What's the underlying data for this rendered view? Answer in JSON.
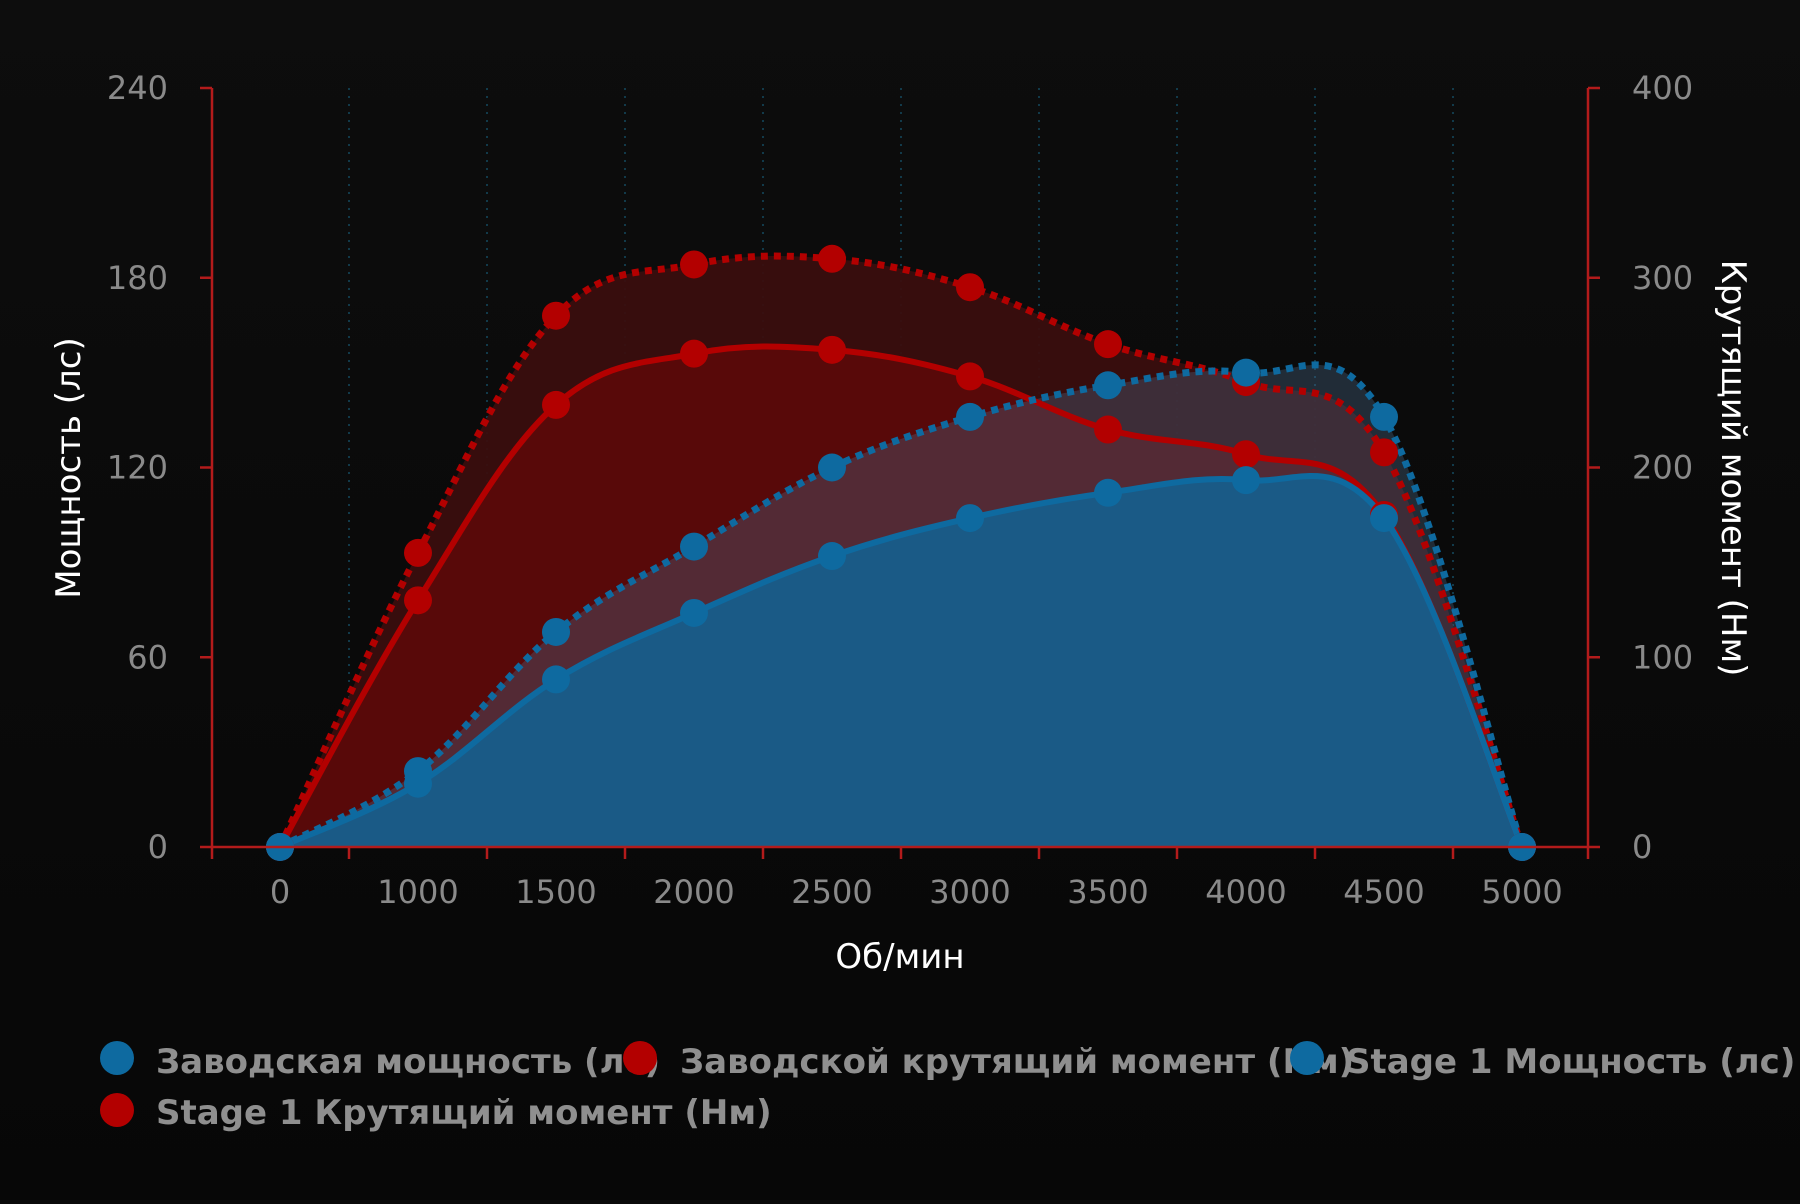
{
  "chart_data": {
    "type": "line",
    "x": [
      0,
      1000,
      1500,
      2000,
      2500,
      3000,
      3500,
      4000,
      4500,
      5000
    ],
    "x_tick_labels": [
      "0",
      "1000",
      "1500",
      "2000",
      "2500",
      "3000",
      "3500",
      "4000",
      "4500",
      "5000"
    ],
    "xlabel": "Об/мин",
    "ylabel_left": "Мощность (лс)",
    "ylabel_right": "Крутящий момент (Нм)",
    "ylim_left": [
      0,
      240
    ],
    "ylim_right": [
      0,
      400
    ],
    "yticks_left": [
      "0",
      "60",
      "120",
      "180",
      "240"
    ],
    "yticks_right": [
      "0",
      "100",
      "200",
      "300",
      "400"
    ],
    "grid": "vertical dotted",
    "legend_position": "bottom",
    "series": [
      {
        "name": "Заводская мощность (лс)",
        "axis": "left",
        "style": "solid",
        "color": "#0e6aa0",
        "values": [
          0,
          20,
          53,
          74,
          92,
          104,
          112,
          116,
          104,
          0
        ]
      },
      {
        "name": "Заводской крутящий момент (Нм)",
        "axis": "right",
        "style": "solid",
        "color": "#b30000",
        "values": [
          0,
          130,
          233,
          260,
          262,
          248,
          220,
          207,
          175,
          0
        ]
      },
      {
        "name": "Stage 1 Мощность (лс)",
        "axis": "left",
        "style": "dotted",
        "color": "#0e6aa0",
        "values": [
          0,
          24,
          68,
          95,
          120,
          136,
          146,
          150,
          136,
          0
        ]
      },
      {
        "name": "Stage 1 Крутящий момент (Нм)",
        "axis": "right",
        "style": "dotted",
        "color": "#b30000",
        "values": [
          0,
          155,
          280,
          307,
          310,
          295,
          265,
          245,
          208,
          0
        ]
      }
    ]
  },
  "legend": {
    "items": [
      {
        "label": "Заводская мощность (лс)",
        "color": "#0e6aa0"
      },
      {
        "label": "Заводской крутящий момент (Нм)",
        "color": "#b30000"
      },
      {
        "label": "Stage 1 Мощность (лс)",
        "color": "#0e6aa0"
      },
      {
        "label": "Stage 1 Крутящий момент (Нм)",
        "color": "#b30000"
      }
    ]
  },
  "colors": {
    "background": "#0a0a0a",
    "axis": "#b31b1b",
    "power": "#0e6aa0",
    "torque": "#b30000",
    "grid": "#123a4a"
  }
}
